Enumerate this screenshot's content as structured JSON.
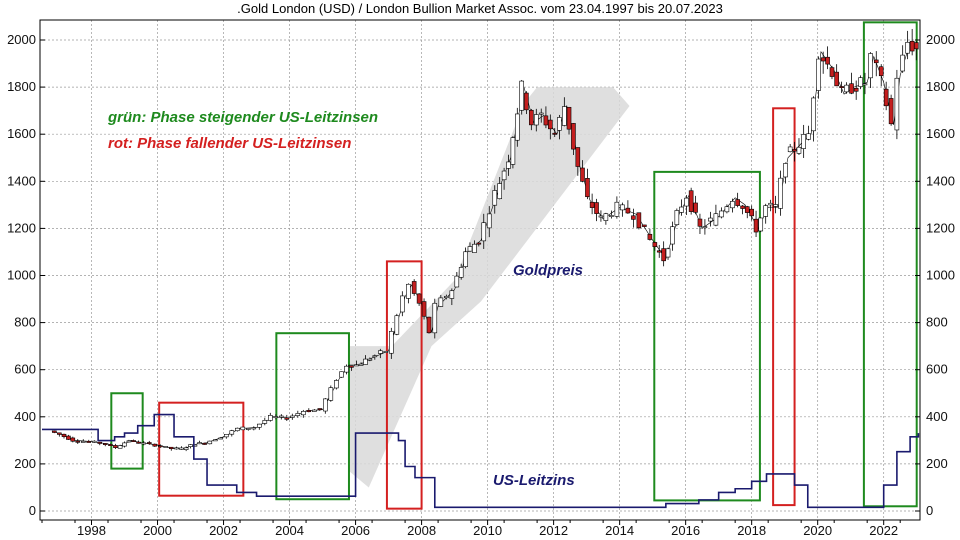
{
  "chart_data": {
    "type": "line",
    "title": ".Gold London (USD) / London Bullion Market Assoc. vom 23.04.1997 bis 20.07.2023",
    "x_ticks": [
      "1998",
      "2000",
      "2002",
      "2004",
      "2006",
      "2008",
      "2010",
      "2012",
      "2014",
      "2016",
      "2018",
      "2020",
      "2022"
    ],
    "y_ticks": [
      "0",
      "200",
      "400",
      "600",
      "800",
      "1000",
      "1200",
      "1400",
      "1600",
      "1800",
      "2000"
    ],
    "xlim": [
      1997.0,
      2023.6
    ],
    "ylim": [
      0,
      2100
    ],
    "grid": true,
    "legend": [
      {
        "text": "grün: Phase steigender US-Leitzinsen",
        "color": "#1e8a1e"
      },
      {
        "text": "rot: Phase fallender US-Leitzinsen",
        "color": "#d42020"
      }
    ],
    "series_labels": {
      "gold": "Goldpreis",
      "rate": "US-Leitzins"
    },
    "colors": {
      "gold_up": "#ffffff",
      "gold_down": "#c41e1e",
      "rate": "#1a1a6e",
      "rising": "#1e8a1e",
      "falling": "#d42020",
      "channel": "#d9d9d9"
    },
    "series": [
      {
        "name": "Goldpreis",
        "x": [
          1997.3,
          1997.6,
          1998.0,
          1998.5,
          1999.0,
          1999.3,
          1999.7,
          2000.0,
          2000.5,
          2001.0,
          2001.3,
          2001.7,
          2002.0,
          2002.5,
          2003.0,
          2003.5,
          2004.0,
          2004.5,
          2005.0,
          2005.5,
          2006.0,
          2006.3,
          2006.6,
          2007.0,
          2007.5,
          2008.0,
          2008.2,
          2008.5,
          2008.8,
          2009.0,
          2009.5,
          2009.9,
          2010.3,
          2010.8,
          2011.2,
          2011.6,
          2011.9,
          2012.2,
          2012.6,
          2012.9,
          2013.3,
          2013.6,
          2014.0,
          2014.5,
          2015.0,
          2015.5,
          2015.9,
          2016.3,
          2016.6,
          2017.0,
          2017.5,
          2018.0,
          2018.3,
          2018.7,
          2019.0,
          2019.3,
          2019.6,
          2020.0,
          2020.3,
          2020.6,
          2021.0,
          2021.3,
          2021.6,
          2022.0,
          2022.2,
          2022.5,
          2022.8,
          2023.0,
          2023.3,
          2023.55
        ],
        "values": [
          340,
          325,
          300,
          295,
          285,
          270,
          300,
          290,
          280,
          265,
          265,
          285,
          290,
          315,
          350,
          355,
          400,
          395,
          425,
          430,
          560,
          620,
          620,
          650,
          680,
          910,
          960,
          880,
          760,
          870,
          940,
          1100,
          1150,
          1350,
          1500,
          1800,
          1650,
          1680,
          1600,
          1720,
          1460,
          1320,
          1240,
          1290,
          1260,
          1150,
          1070,
          1260,
          1340,
          1200,
          1250,
          1330,
          1300,
          1200,
          1290,
          1290,
          1500,
          1560,
          1600,
          1950,
          1870,
          1770,
          1800,
          1820,
          1930,
          1820,
          1640,
          1850,
          1990,
          1960
        ]
      },
      {
        "name": "US-Leitzins",
        "x": [
          1997.0,
          1998.7,
          1998.9,
          1999.2,
          1999.5,
          1999.9,
          2000.4,
          2001.0,
          2001.6,
          2002.0,
          2002.9,
          2003.5,
          2004.5,
          2006.5,
          2007.6,
          2007.8,
          2008.0,
          2008.3,
          2008.9,
          2015.9,
          2016.9,
          2017.5,
          2018.0,
          2018.5,
          2018.95,
          2019.6,
          2019.8,
          2020.2,
          2022.2,
          2022.5,
          2022.9,
          2023.3,
          2023.55
        ],
        "values": [
          5.5,
          4.75,
          4.75,
          5.0,
          5.25,
          5.75,
          6.5,
          5.0,
          3.5,
          1.75,
          1.25,
          1.0,
          1.0,
          5.25,
          5.25,
          4.75,
          3.0,
          2.25,
          0.25,
          0.5,
          0.75,
          1.25,
          1.5,
          2.0,
          2.5,
          2.5,
          1.75,
          0.25,
          0.25,
          1.75,
          4.0,
          5.0,
          5.25
        ]
      }
    ],
    "phases": [
      {
        "type": "rising",
        "x0": 1999.1,
        "x1": 2000.05,
        "y0": 180,
        "y1": 500
      },
      {
        "type": "falling",
        "x0": 2000.55,
        "x1": 2003.1,
        "y0": 65,
        "y1": 460
      },
      {
        "type": "rising",
        "x0": 2004.1,
        "x1": 2006.3,
        "y0": 50,
        "y1": 755
      },
      {
        "type": "falling",
        "x0": 2007.45,
        "x1": 2008.5,
        "y0": 10,
        "y1": 1060
      },
      {
        "type": "rising",
        "x0": 2015.55,
        "x1": 2018.75,
        "y0": 45,
        "y1": 1440
      },
      {
        "type": "falling",
        "x0": 2019.15,
        "x1": 2019.8,
        "y0": 25,
        "y1": 1710
      },
      {
        "type": "rising",
        "x0": 2021.9,
        "x1": 2023.5,
        "y0": 20,
        "y1": 2075
      }
    ]
  }
}
